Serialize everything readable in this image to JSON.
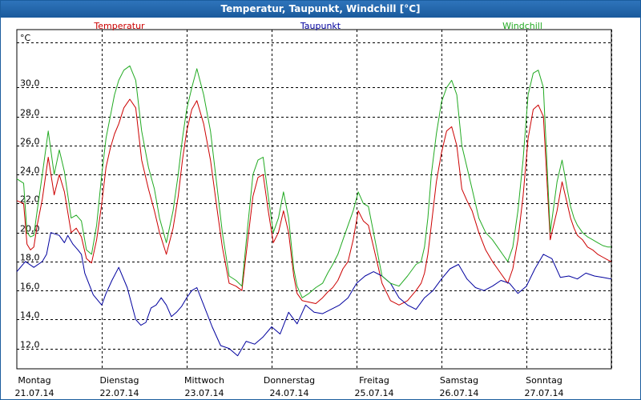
{
  "window": {
    "title": "Temperatur, Taupunkt, Windchill [°C]"
  },
  "colors": {
    "title_bg": "#1f65ab",
    "grid": "#000000",
    "plot_border": "#000000"
  },
  "chart_data": {
    "type": "line",
    "title": "Temperatur, Taupunkt, Windchill [°C]",
    "ylabel": "°C",
    "ylim": [
      10.6,
      34.0
    ],
    "yticks": [
      12.0,
      14.0,
      16.0,
      18.0,
      20.0,
      22.0,
      24.0,
      26.0,
      28.0,
      30.0
    ],
    "ytick_labels": [
      "12,0",
      "14,0",
      "16,0",
      "18,0",
      "20,0",
      "22,0",
      "24,0",
      "26,0",
      "28,0",
      "30,0"
    ],
    "xlim": [
      0,
      7
    ],
    "day_ticks": [
      0,
      1,
      2,
      3,
      4,
      5,
      6
    ],
    "day_names": [
      "Montag",
      "Dienstag",
      "Mittwoch",
      "Donnerstag",
      "Freitag",
      "Samstag",
      "Sonntag"
    ],
    "day_dates": [
      "21.07.14",
      "22.07.14",
      "23.07.14",
      "24.07.14",
      "25.07.14",
      "26.07.14",
      "27.07.14"
    ],
    "grid": true,
    "series": [
      {
        "name": "Temperatur",
        "color": "#cc0000",
        "legend_pos": "left",
        "x": [
          0,
          0.08,
          0.12,
          0.16,
          0.2,
          0.24,
          0.3,
          0.37,
          0.44,
          0.5,
          0.56,
          0.64,
          0.7,
          0.76,
          0.82,
          0.88,
          0.94,
          1.0,
          1.05,
          1.1,
          1.15,
          1.2,
          1.26,
          1.33,
          1.4,
          1.47,
          1.55,
          1.62,
          1.68,
          1.76,
          1.84,
          1.9,
          1.95,
          2.0,
          2.06,
          2.12,
          2.2,
          2.28,
          2.36,
          2.42,
          2.5,
          2.58,
          2.65,
          2.72,
          2.78,
          2.84,
          2.9,
          2.96,
          3.02,
          3.08,
          3.14,
          3.2,
          3.26,
          3.3,
          3.36,
          3.44,
          3.52,
          3.6,
          3.66,
          3.72,
          3.78,
          3.84,
          3.9,
          3.96,
          4.02,
          4.08,
          4.14,
          4.2,
          4.3,
          4.4,
          4.5,
          4.6,
          4.7,
          4.76,
          4.8,
          4.84,
          4.88,
          4.94,
          5.0,
          5.06,
          5.12,
          5.18,
          5.24,
          5.3,
          5.36,
          5.44,
          5.52,
          5.6,
          5.66,
          5.72,
          5.78,
          5.84,
          5.9,
          5.96,
          6.02,
          6.08,
          6.14,
          6.2,
          6.28,
          6.36,
          6.42,
          6.48,
          6.52,
          6.56,
          6.6,
          6.66,
          6.72,
          6.78,
          6.84,
          6.9,
          6.96,
          7.0
        ],
        "y": [
          22.2,
          22.0,
          19.2,
          18.8,
          19.0,
          20.5,
          22.3,
          25.2,
          22.6,
          24.0,
          22.8,
          20.0,
          20.3,
          19.7,
          18.2,
          17.9,
          19.5,
          22.0,
          24.5,
          25.8,
          26.8,
          27.5,
          28.6,
          29.2,
          28.6,
          25.0,
          23.0,
          21.5,
          20.0,
          18.5,
          20.3,
          22.5,
          25.0,
          27.0,
          28.5,
          29.1,
          27.5,
          25.0,
          21.5,
          19.0,
          16.5,
          16.3,
          16.0,
          19.5,
          22.5,
          23.8,
          24.0,
          21.5,
          19.3,
          20.0,
          21.5,
          20.0,
          17.0,
          15.8,
          15.3,
          15.2,
          15.1,
          15.5,
          15.9,
          16.2,
          16.7,
          17.5,
          18.0,
          19.5,
          21.5,
          20.8,
          20.5,
          19.0,
          16.5,
          15.3,
          15.0,
          15.3,
          16.0,
          16.5,
          17.2,
          18.5,
          20.5,
          23.5,
          25.5,
          27.0,
          27.3,
          26.0,
          23.0,
          22.2,
          21.5,
          20.0,
          18.8,
          18.0,
          17.5,
          17.0,
          16.5,
          17.5,
          19.5,
          22.5,
          26.5,
          28.5,
          28.8,
          28.0,
          19.5,
          21.5,
          23.5,
          22.0,
          21.0,
          20.3,
          19.8,
          19.5,
          19.0,
          18.8,
          18.5,
          18.3,
          18.1,
          18.0
        ]
      },
      {
        "name": "Taupunkt",
        "color": "#00009e",
        "legend_pos": "center",
        "x": [
          0,
          0.1,
          0.2,
          0.3,
          0.35,
          0.4,
          0.5,
          0.56,
          0.6,
          0.66,
          0.72,
          0.76,
          0.8,
          0.9,
          1.0,
          1.05,
          1.12,
          1.2,
          1.3,
          1.4,
          1.46,
          1.52,
          1.58,
          1.64,
          1.7,
          1.76,
          1.82,
          1.88,
          1.94,
          2.0,
          2.06,
          2.12,
          2.2,
          2.3,
          2.4,
          2.5,
          2.6,
          2.7,
          2.8,
          2.9,
          3.0,
          3.1,
          3.2,
          3.3,
          3.4,
          3.5,
          3.6,
          3.7,
          3.8,
          3.9,
          4.0,
          4.1,
          4.2,
          4.3,
          4.4,
          4.5,
          4.6,
          4.7,
          4.8,
          4.9,
          5.0,
          5.1,
          5.2,
          5.3,
          5.4,
          5.5,
          5.6,
          5.7,
          5.8,
          5.9,
          6.0,
          6.1,
          6.2,
          6.3,
          6.4,
          6.5,
          6.6,
          6.7,
          6.8,
          6.9,
          7.0
        ],
        "y": [
          17.3,
          18.0,
          17.6,
          18.0,
          18.5,
          20.0,
          19.8,
          19.3,
          19.8,
          19.2,
          18.8,
          18.5,
          17.2,
          15.7,
          15.0,
          15.8,
          16.7,
          17.6,
          16.2,
          14.0,
          13.6,
          13.8,
          14.8,
          15.0,
          15.5,
          15.0,
          14.2,
          14.5,
          14.9,
          15.5,
          16.0,
          16.2,
          15.0,
          13.5,
          12.2,
          12.0,
          11.5,
          12.5,
          12.3,
          12.8,
          13.5,
          13.0,
          14.5,
          13.7,
          15.0,
          14.5,
          14.4,
          14.7,
          15.0,
          15.5,
          16.5,
          17.0,
          17.3,
          17.0,
          16.5,
          15.5,
          15.0,
          14.7,
          15.5,
          16.0,
          16.8,
          17.5,
          17.8,
          16.8,
          16.2,
          16.0,
          16.3,
          16.7,
          16.5,
          15.8,
          16.3,
          17.5,
          18.5,
          18.2,
          16.9,
          17.0,
          16.8,
          17.2,
          17.0,
          16.9,
          16.8
        ]
      },
      {
        "name": "Windchill",
        "color": "#22aa22",
        "legend_pos": "right",
        "x": [
          0,
          0.08,
          0.12,
          0.16,
          0.2,
          0.24,
          0.3,
          0.37,
          0.44,
          0.5,
          0.56,
          0.64,
          0.7,
          0.76,
          0.82,
          0.88,
          0.94,
          1.0,
          1.05,
          1.1,
          1.15,
          1.2,
          1.26,
          1.33,
          1.4,
          1.47,
          1.55,
          1.62,
          1.68,
          1.76,
          1.84,
          1.9,
          1.95,
          2.0,
          2.06,
          2.12,
          2.2,
          2.28,
          2.36,
          2.42,
          2.5,
          2.58,
          2.65,
          2.72,
          2.78,
          2.84,
          2.9,
          2.96,
          3.02,
          3.08,
          3.14,
          3.2,
          3.26,
          3.3,
          3.36,
          3.44,
          3.52,
          3.6,
          3.66,
          3.72,
          3.78,
          3.84,
          3.9,
          3.96,
          4.02,
          4.08,
          4.14,
          4.2,
          4.3,
          4.4,
          4.5,
          4.6,
          4.7,
          4.76,
          4.8,
          4.84,
          4.88,
          4.94,
          5.0,
          5.06,
          5.12,
          5.18,
          5.24,
          5.3,
          5.36,
          5.44,
          5.52,
          5.6,
          5.66,
          5.72,
          5.78,
          5.84,
          5.9,
          5.96,
          6.02,
          6.08,
          6.14,
          6.2,
          6.28,
          6.36,
          6.42,
          6.48,
          6.52,
          6.56,
          6.6,
          6.66,
          6.72,
          6.78,
          6.84,
          6.9,
          6.96,
          7.0
        ],
        "y": [
          23.7,
          23.4,
          20.0,
          19.7,
          19.8,
          21.5,
          24.0,
          27.0,
          24.0,
          25.7,
          24.2,
          21.0,
          21.2,
          20.8,
          18.8,
          18.5,
          20.5,
          24.0,
          26.5,
          28.0,
          29.5,
          30.5,
          31.2,
          31.5,
          30.5,
          27.0,
          24.5,
          23.0,
          21.0,
          19.3,
          21.5,
          24.0,
          26.5,
          28.5,
          30.0,
          31.3,
          29.5,
          27.0,
          23.0,
          20.0,
          17.0,
          16.7,
          16.3,
          20.5,
          24.0,
          25.0,
          25.2,
          22.5,
          20.0,
          21.0,
          22.8,
          21.0,
          17.5,
          16.3,
          15.5,
          15.8,
          16.2,
          16.5,
          17.2,
          17.8,
          18.5,
          19.5,
          20.5,
          21.5,
          22.8,
          22.0,
          21.8,
          20.0,
          17.0,
          16.5,
          16.3,
          17.0,
          17.8,
          18.0,
          19.0,
          21.0,
          24.0,
          26.8,
          29.0,
          30.0,
          30.5,
          29.5,
          26.0,
          24.5,
          23.0,
          21.0,
          20.0,
          19.5,
          19.0,
          18.5,
          18.0,
          19.0,
          21.5,
          25.0,
          29.5,
          31.0,
          31.2,
          30.0,
          20.0,
          23.5,
          25.0,
          23.0,
          21.8,
          21.0,
          20.5,
          20.0,
          19.7,
          19.5,
          19.3,
          19.1,
          19.0,
          19.0
        ]
      }
    ]
  }
}
